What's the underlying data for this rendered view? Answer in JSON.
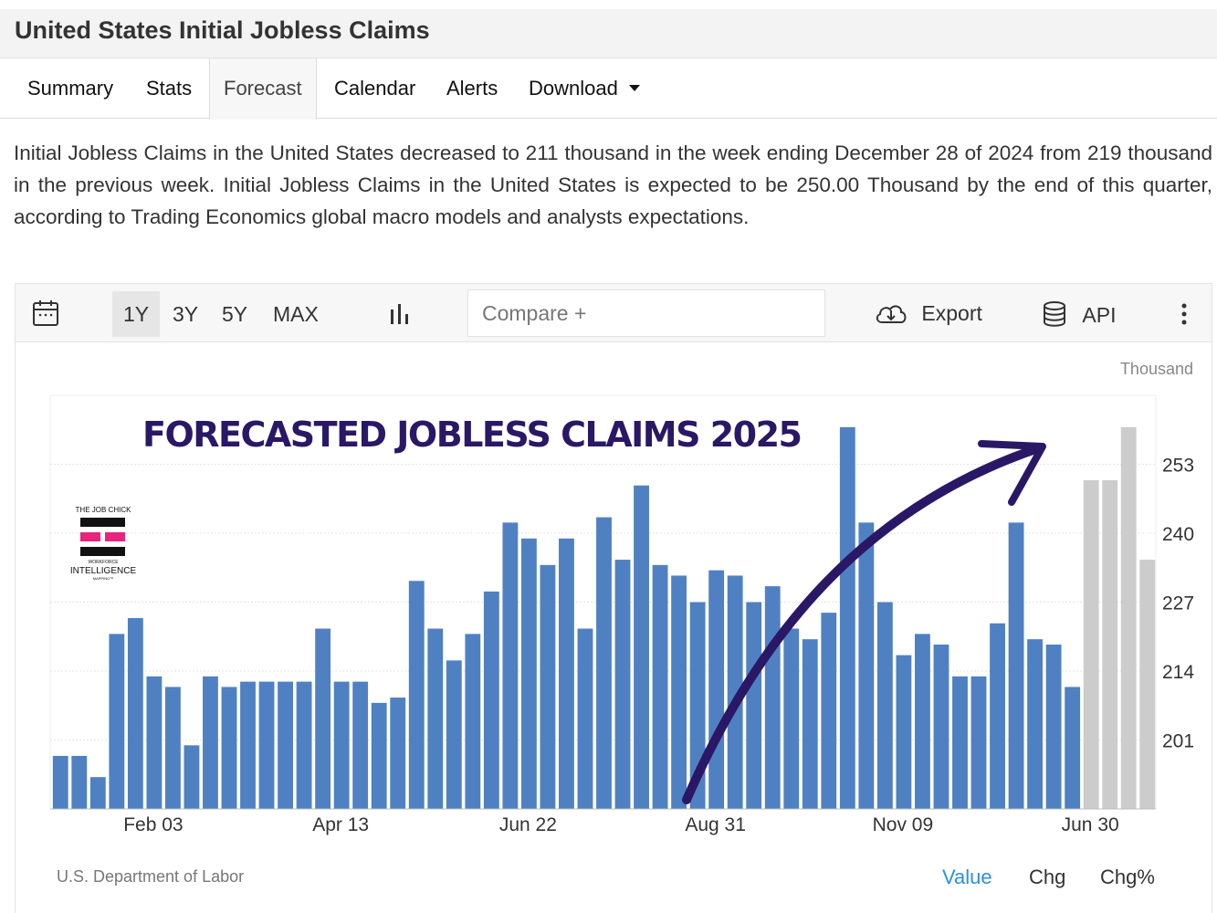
{
  "title": "United States Initial Jobless Claims",
  "tabs": [
    {
      "label": "Summary"
    },
    {
      "label": "Stats"
    },
    {
      "label": "Forecast"
    },
    {
      "label": "Calendar"
    },
    {
      "label": "Alerts"
    },
    {
      "label": "Download"
    }
  ],
  "active_tab": "Forecast",
  "description": "Initial Jobless Claims in the United States decreased to 211 thousand in the week ending December 28 of 2024 from 219 thousand in the previous week. Initial Jobless Claims in the United States is expected to be 250.00 Thousand by the end of this quarter, according to Trading Economics global macro models and analysts expectations.",
  "toolbar": {
    "ranges": [
      "1Y",
      "3Y",
      "5Y",
      "MAX"
    ],
    "selected_range": "1Y",
    "compare_placeholder": "Compare +",
    "export_label": "Export",
    "api_label": "API"
  },
  "logo": {
    "line1": "THE JOB CHICK",
    "line2": "WORKFORCE",
    "line3": "INTELLIGENCE",
    "line4": "MAPPING™"
  },
  "colors": {
    "actual_bar": "#4f81c2",
    "forecast_bar": "#cccccc",
    "annotation": "#2a1866",
    "active_mode": "#2b8fe0"
  },
  "chart_data": {
    "type": "bar",
    "title": "FORECASTED JOBLESS CLAIMS 2025",
    "unit_label": "Thousand",
    "ylim": [
      188,
      266
    ],
    "y_ticks": [
      201,
      214,
      227,
      240,
      253
    ],
    "x_tick_labels": [
      {
        "label": "Feb 03",
        "index": 5
      },
      {
        "label": "Apr 13",
        "index": 15
      },
      {
        "label": "Jun 22",
        "index": 25
      },
      {
        "label": "Aug 31",
        "index": 35
      },
      {
        "label": "Nov 09",
        "index": 45
      },
      {
        "label": "Jun 30",
        "index": 55
      }
    ],
    "grid": true,
    "series": [
      {
        "values": [
          198,
          198,
          194,
          221,
          224,
          213,
          211,
          200,
          213,
          211,
          212,
          212,
          212,
          212,
          222,
          212,
          212,
          208,
          209,
          231,
          222,
          216,
          221,
          229,
          242,
          239,
          234,
          239,
          222,
          243,
          235,
          249,
          234,
          232,
          227,
          233,
          232,
          227,
          230,
          222,
          220,
          225,
          260,
          242,
          227,
          217,
          221,
          219,
          213,
          213,
          223,
          242,
          220,
          219,
          211
        ]
      },
      {
        "values": [
          250,
          250,
          260,
          235
        ]
      }
    ],
    "source": "U.S. Department of Labor",
    "modes": [
      "Value",
      "Chg",
      "Chg%"
    ],
    "active_mode": "Value"
  }
}
